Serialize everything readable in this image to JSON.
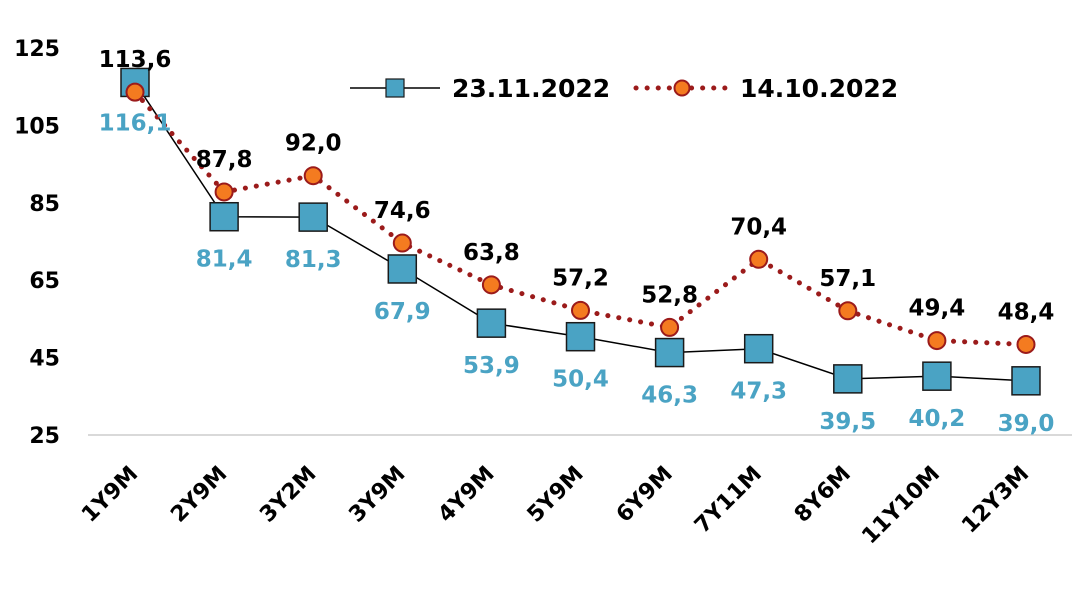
{
  "chart_data": {
    "type": "line",
    "categories": [
      "1Y9M",
      "2Y9M",
      "3Y2M",
      "3Y9M",
      "4Y9M",
      "5Y9M",
      "6Y9M",
      "7Y11M",
      "8Y6M",
      "11Y10M",
      "12Y3M"
    ],
    "series": [
      {
        "name": "23.11.2022",
        "values": [
          116.1,
          81.4,
          81.3,
          67.9,
          53.9,
          50.4,
          46.3,
          47.3,
          39.5,
          40.2,
          39.0
        ],
        "labels": [
          "116,1",
          "81,4",
          "81,3",
          "67,9",
          "53,9",
          "50,4",
          "46,3",
          "47,3",
          "39,5",
          "40,2",
          "39,0"
        ],
        "color": "#4aa3c4",
        "marker": "square",
        "line_color": "#000000"
      },
      {
        "name": "14.10.2022",
        "values": [
          113.6,
          87.8,
          92.0,
          74.6,
          63.8,
          57.2,
          52.8,
          70.4,
          57.1,
          49.4,
          48.4
        ],
        "labels": [
          "113,6",
          "87,8",
          "92,0",
          "74,6",
          "63,8",
          "57,2",
          "52,8",
          "70,4",
          "57,1",
          "49,4",
          "48,4"
        ],
        "color": "#f47b20",
        "marker": "circle",
        "line_color": "#9b1b1b",
        "line_style": "dotted"
      }
    ],
    "yticks": [
      "125",
      "105",
      "85",
      "65",
      "45",
      "25"
    ],
    "ytick_values": [
      125,
      105,
      85,
      65,
      45,
      25
    ],
    "ylim": [
      25,
      125
    ],
    "legend": "top-right",
    "grid": false
  }
}
